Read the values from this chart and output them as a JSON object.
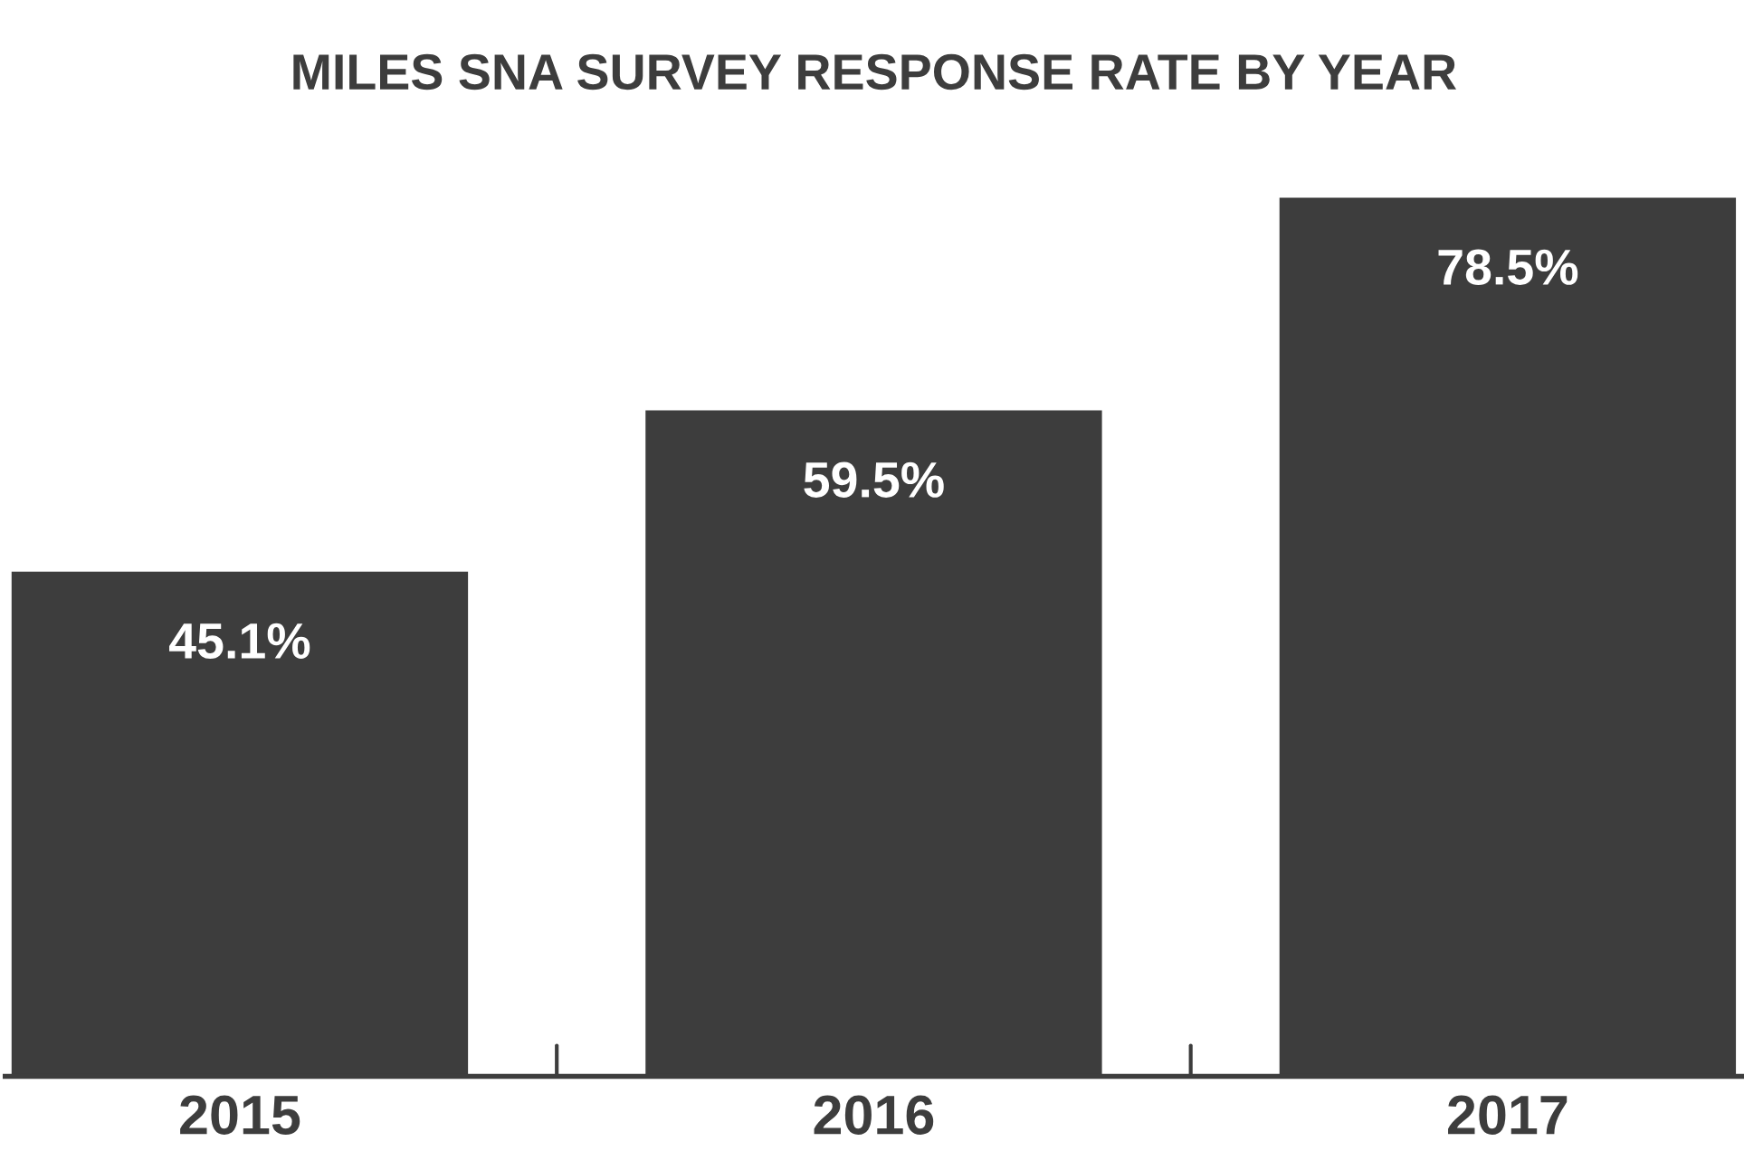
{
  "chart_data": {
    "type": "bar",
    "title": "MILES SNA SURVEY RESPONSE RATE BY YEAR",
    "categories": [
      "2015",
      "2016",
      "2017"
    ],
    "values": [
      45.1,
      59.5,
      78.5
    ],
    "value_labels": [
      "45.1%",
      "59.5%",
      "78.5%"
    ],
    "color": "#3d3d3d",
    "grid": false,
    "legend": false,
    "tick_labels": "x"
  }
}
